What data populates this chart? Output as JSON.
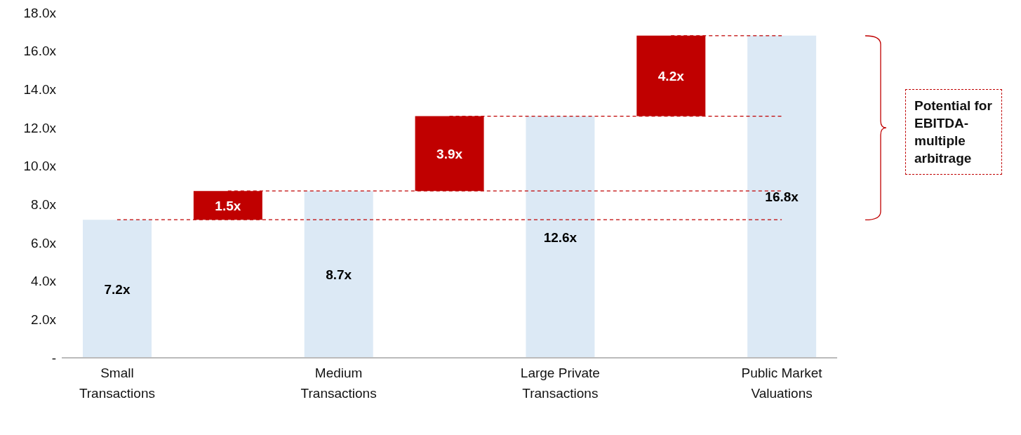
{
  "chart_data": {
    "type": "bar",
    "categories": [
      "Small Transactions",
      null,
      "Medium Transactions",
      null,
      "Large Private Transactions",
      null,
      "Public Market Valuations"
    ],
    "values": [
      7.2,
      1.5,
      8.7,
      3.9,
      12.6,
      4.2,
      16.8
    ],
    "base": [
      0,
      7.2,
      0,
      8.7,
      0,
      12.6,
      0
    ],
    "colors": [
      "#dce9f5",
      "#c00000",
      "#dce9f5",
      "#c00000",
      "#dce9f5",
      "#c00000",
      "#dce9f5"
    ],
    "value_labels": [
      "7.2x",
      "1.5x",
      "8.7x",
      "3.9x",
      "12.6x",
      "4.2x",
      "16.8x"
    ],
    "ylim": [
      0,
      18
    ],
    "yticks": [
      {
        "value": 0,
        "label": "-"
      },
      {
        "value": 2,
        "label": "2.0x"
      },
      {
        "value": 4,
        "label": "4.0x"
      },
      {
        "value": 6,
        "label": "6.0x"
      },
      {
        "value": 8,
        "label": "8.0x"
      },
      {
        "value": 10,
        "label": "10.0x"
      },
      {
        "value": 12,
        "label": "12.0x"
      },
      {
        "value": 14,
        "label": "14.0x"
      },
      {
        "value": 16,
        "label": "16.0x"
      },
      {
        "value": 18,
        "label": "18.0x"
      }
    ],
    "grid": false,
    "legend": false,
    "ref_lines": [
      {
        "axis": "y",
        "value": 7.2,
        "color": "#c00000",
        "line_style": "dashed"
      },
      {
        "axis": "y",
        "value": 8.7,
        "color": "#c00000",
        "line_style": "dashed"
      },
      {
        "axis": "y",
        "value": 12.6,
        "color": "#c00000",
        "line_style": "dashed"
      },
      {
        "axis": "y",
        "value": 16.8,
        "color": "#c00000",
        "line_style": "dashed"
      }
    ],
    "annotations": [
      "Potential for EBITDA-multiple arbitrage"
    ]
  }
}
